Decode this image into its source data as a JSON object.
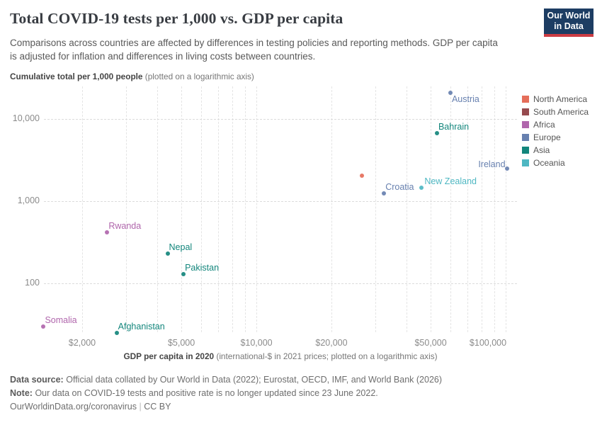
{
  "header": {
    "title": "Total COVID-19 tests per 1,000 vs. GDP per capita",
    "subtitle": "Comparisons across countries are affected by differences in testing policies and reporting methods. GDP per capita is adjusted for inflation and differences in living costs between countries."
  },
  "logo": {
    "line1": "Our World",
    "line2": "in Data",
    "bg_color": "#1d3d63",
    "accent_color": "#cc3c43"
  },
  "axes": {
    "y_title": "Cumulative total per 1,000 people",
    "y_title_note": " (plotted on a logarithmic axis)",
    "x_title": "GDP per capita in 2020",
    "x_title_note": " (international-$ in 2021 prices; plotted on a logarithmic axis)"
  },
  "chart_data": {
    "type": "scatter",
    "title": "Total COVID-19 tests per 1,000 vs. GDP per capita",
    "xlabel": "GDP per capita in 2020 (international-$ in 2021 prices; plotted on a logarithmic axis)",
    "ylabel": "Cumulative total per 1,000 people (plotted on a logarithmic axis)",
    "x_scale": "log",
    "y_scale": "log",
    "xlim": [
      1250,
      111000
    ],
    "ylim": [
      22,
      22000
    ],
    "grid": true,
    "legend_position": "right",
    "x_ticks": [
      {
        "value": 2000,
        "label": "$2,000",
        "align": "center"
      },
      {
        "value": 5000,
        "label": "$5,000",
        "align": "center"
      },
      {
        "value": 10000,
        "label": "$10,000",
        "align": "center"
      },
      {
        "value": 20000,
        "label": "$20,000",
        "align": "center"
      },
      {
        "value": 50000,
        "label": "$50,000",
        "align": "center"
      },
      {
        "value": 100000,
        "label": "$100,000",
        "align": "right"
      }
    ],
    "y_ticks": [
      {
        "value": 100,
        "label": "100"
      },
      {
        "value": 1000,
        "label": "1,000"
      },
      {
        "value": 10000,
        "label": "10,000"
      }
    ],
    "x_minor_gridlines": [
      2000,
      3000,
      4000,
      5000,
      6000,
      7000,
      8000,
      9000,
      10000,
      20000,
      30000,
      40000,
      50000,
      60000,
      70000,
      80000,
      90000,
      100000
    ],
    "regions": [
      {
        "name": "North America",
        "color": "#E56E5A"
      },
      {
        "name": "South America",
        "color": "#964A4E"
      },
      {
        "name": "Africa",
        "color": "#B066AC"
      },
      {
        "name": "Europe",
        "color": "#6780AF"
      },
      {
        "name": "Asia",
        "color": "#13867C"
      },
      {
        "name": "Oceania",
        "color": "#4EB7C2"
      }
    ],
    "points": [
      {
        "country": "Austria",
        "region": "Europe",
        "gdp_per_capita": 60000,
        "tests_per_1000": 21000,
        "label_pos": "below-right"
      },
      {
        "country": "Bahrain",
        "region": "Asia",
        "gdp_per_capita": 53000,
        "tests_per_1000": 6700,
        "label_pos": "above-right"
      },
      {
        "country": "Ireland",
        "region": "Europe",
        "gdp_per_capita": 101000,
        "tests_per_1000": 2500,
        "label_pos": "above-left"
      },
      {
        "country": "",
        "region": "North America",
        "gdp_per_capita": 26500,
        "tests_per_1000": 2050,
        "label_pos": "none"
      },
      {
        "country": "New Zealand",
        "region": "Oceania",
        "gdp_per_capita": 46000,
        "tests_per_1000": 1450,
        "label_pos": "right-above"
      },
      {
        "country": "Croatia",
        "region": "Europe",
        "gdp_per_capita": 32500,
        "tests_per_1000": 1250,
        "label_pos": "above-right"
      },
      {
        "country": "Rwanda",
        "region": "Africa",
        "gdp_per_capita": 2520,
        "tests_per_1000": 420,
        "label_pos": "above-right"
      },
      {
        "country": "Nepal",
        "region": "Asia",
        "gdp_per_capita": 4400,
        "tests_per_1000": 230,
        "label_pos": "above-right"
      },
      {
        "country": "Pakistan",
        "region": "Asia",
        "gdp_per_capita": 5100,
        "tests_per_1000": 130,
        "label_pos": "above-right"
      },
      {
        "country": "Somalia",
        "region": "Africa",
        "gdp_per_capita": 1400,
        "tests_per_1000": 30,
        "label_pos": "above-right"
      },
      {
        "country": "Afghanistan",
        "region": "Asia",
        "gdp_per_capita": 2750,
        "tests_per_1000": 25,
        "label_pos": "above-right"
      }
    ]
  },
  "footer": {
    "datasource_label": "Data source:",
    "datasource_text": "Official data collated by Our World in Data (2022); Eurostat, OECD, IMF, and World Bank (2026)",
    "note_label": "Note:",
    "note_text": "Our data on COVID-19 tests and positive rate is no longer updated since 23 June 2022.",
    "url": "OurWorldinData.org/coronavirus",
    "separator": "|",
    "license": "CC BY"
  }
}
